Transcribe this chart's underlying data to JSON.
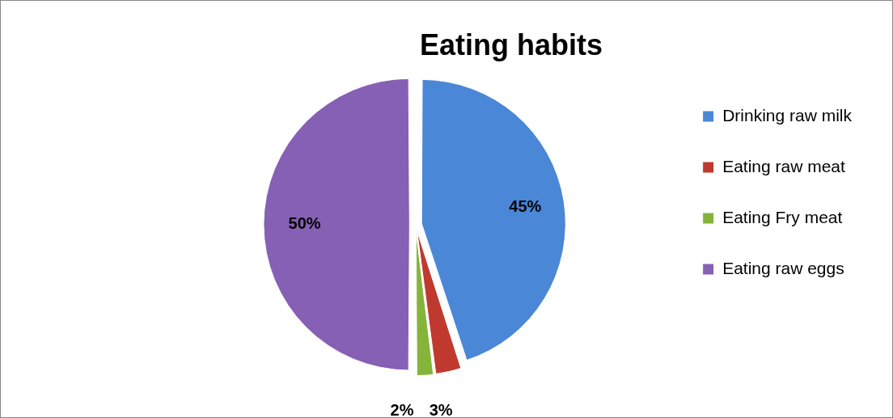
{
  "chart_data": {
    "type": "pie",
    "title": "Eating habits",
    "categories": [
      "Drinking raw milk",
      "Eating raw meat",
      "Eating Fry meat",
      "Eating raw eggs"
    ],
    "values": [
      45,
      3,
      2,
      50
    ],
    "colors": [
      "#4a87d6",
      "#c0392f",
      "#86b33a",
      "#8660b4"
    ],
    "value_labels": [
      "45%",
      "3%",
      "2%",
      "50%"
    ],
    "legend": "right"
  }
}
